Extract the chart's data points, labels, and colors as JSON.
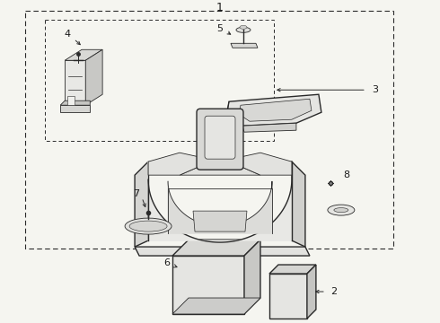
{
  "bg_color": "#f5f5f0",
  "line_color": "#2a2a2a",
  "label_color": "#1a1a1a",
  "fig_width": 4.9,
  "fig_height": 3.6,
  "dpi": 100
}
